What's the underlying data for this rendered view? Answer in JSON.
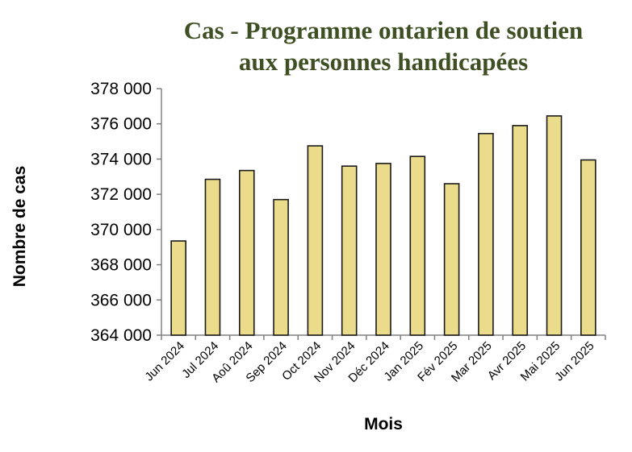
{
  "chart_data": {
    "type": "bar",
    "title_lines": [
      "Cas - Programme ontarien de soutien",
      "aux personnes handicapées"
    ],
    "xlabel": "Mois",
    "ylabel": "Nombre de cas",
    "categories": [
      "Jun 2024",
      "Jul 2024",
      "Aoû 2024",
      "Sep 2024",
      "Oct 2024",
      "Nov 2024",
      "Déc 2024",
      "Jan 2025",
      "Fév 2025",
      "Mar 2025",
      "Avr 2025",
      "Mai 2025",
      "Jun 2025"
    ],
    "values": [
      369350,
      372850,
      373350,
      371700,
      374750,
      373600,
      373750,
      374150,
      372600,
      375450,
      375900,
      376450,
      373950
    ],
    "ylim": [
      364000,
      378000
    ],
    "yticks": [
      364000,
      366000,
      368000,
      370000,
      372000,
      374000,
      376000,
      378000
    ],
    "ytick_labels": [
      "364 000",
      "366 000",
      "368 000",
      "370 000",
      "372 000",
      "374 000",
      "376 000",
      "378 000"
    ],
    "grid": false,
    "legend": "none",
    "colors": {
      "bar_fill": "#eadc8a",
      "bar_stroke": "#1a1a1a",
      "title": "#3f4f24",
      "axis": "#808080"
    }
  }
}
